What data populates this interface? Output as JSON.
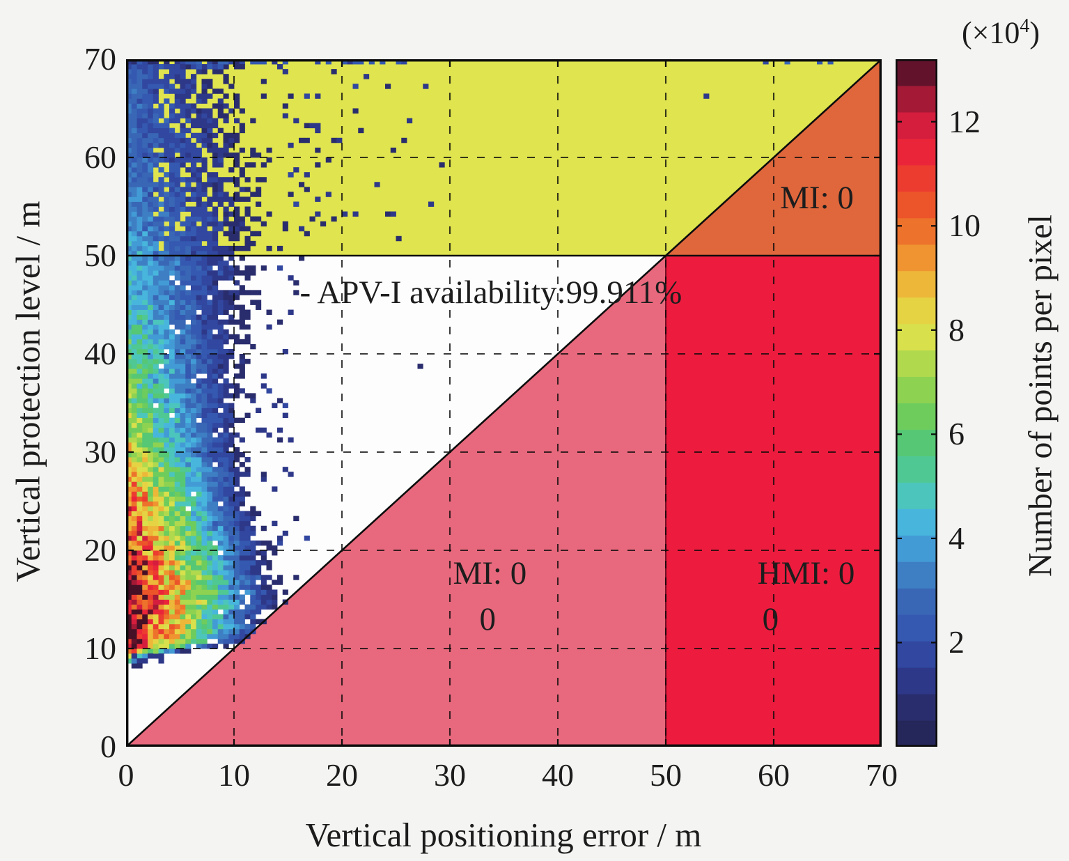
{
  "chart_data": {
    "type": "heatmap",
    "xlabel": "Vertical positioning error / m",
    "ylabel": "Vertical protection level / m",
    "xlim": [
      0,
      70
    ],
    "ylim": [
      0,
      70
    ],
    "xticks": [
      0,
      10,
      20,
      30,
      40,
      50,
      60,
      70
    ],
    "yticks": [
      0,
      10,
      20,
      30,
      40,
      50,
      60,
      70
    ],
    "grid": "dashed",
    "background_plot": "#fdfdfd",
    "colorbar": {
      "label": "Number of points per pixel",
      "scale_prefix": "(×10",
      "scale_exp": "4",
      "scale_suffix": ")",
      "ticks": [
        2,
        4,
        6,
        8,
        10,
        12
      ],
      "vmin": 0,
      "vmax": 13.2,
      "bands": 26,
      "stops": [
        [
          0.0,
          "#23224f"
        ],
        [
          0.06,
          "#2a2d6e"
        ],
        [
          0.12,
          "#30409a"
        ],
        [
          0.17,
          "#3558af"
        ],
        [
          0.22,
          "#3a6ab8"
        ],
        [
          0.26,
          "#3f86c8"
        ],
        [
          0.3,
          "#44a4da"
        ],
        [
          0.335,
          "#49bcdc"
        ],
        [
          0.37,
          "#4cc6b8"
        ],
        [
          0.41,
          "#50c88e"
        ],
        [
          0.455,
          "#58c76a"
        ],
        [
          0.5,
          "#7ecf54"
        ],
        [
          0.55,
          "#a8d84e"
        ],
        [
          0.6,
          "#dce14c"
        ],
        [
          0.645,
          "#e9cf42"
        ],
        [
          0.69,
          "#efa834"
        ],
        [
          0.735,
          "#ee7e2c"
        ],
        [
          0.78,
          "#ec5a28"
        ],
        [
          0.83,
          "#ec3a30"
        ],
        [
          0.875,
          "#ea1f3c"
        ],
        [
          0.91,
          "#d01d3e"
        ],
        [
          0.945,
          "#a01934"
        ],
        [
          0.975,
          "#6b142c"
        ],
        [
          1.0,
          "#461026"
        ]
      ]
    },
    "regions": [
      {
        "name": "system-unavailable",
        "color": "#dfe44f",
        "polygon": [
          [
            0,
            50
          ],
          [
            50,
            50
          ],
          [
            70,
            70
          ],
          [
            0,
            70
          ]
        ]
      },
      {
        "name": "mi-upper",
        "color": "#e0673c",
        "polygon": [
          [
            50,
            50
          ],
          [
            70,
            70
          ],
          [
            70,
            50
          ]
        ]
      },
      {
        "name": "mi-lower",
        "color": "#e8697d",
        "polygon": [
          [
            0,
            0
          ],
          [
            50,
            50
          ],
          [
            50,
            0
          ]
        ]
      },
      {
        "name": "hmi",
        "color": "#ed1c3e",
        "polygon": [
          [
            50,
            0
          ],
          [
            50,
            50
          ],
          [
            70,
            50
          ],
          [
            70,
            0
          ]
        ]
      }
    ],
    "diagonal": {
      "from": [
        0,
        0
      ],
      "to": [
        70,
        70
      ]
    },
    "hline_y": 50,
    "vline_x": 50,
    "annotations": [
      {
        "text": "- APV-I availability:99.911%",
        "x": 16.1,
        "y": 46.2,
        "anchor": "left"
      },
      {
        "text": "MI: 0",
        "x": 64.0,
        "y": 55.8,
        "anchor": "center"
      },
      {
        "text": "MI: 0",
        "x": 33.7,
        "y": 17.6,
        "anchor": "center"
      },
      {
        "text": "0",
        "x": 33.5,
        "y": 12.9,
        "anchor": "center"
      },
      {
        "text": "HMI: 0",
        "x": 63.0,
        "y": 17.6,
        "anchor": "center"
      },
      {
        "text": "0",
        "x": 59.7,
        "y": 12.9,
        "anchor": "center"
      }
    ],
    "density_model": {
      "note": "2-D histogram of VPL vs VPE, bin 0.5 m, values are counts x10^4",
      "seed": 1234,
      "bin": 0.5,
      "y_knots": [
        8.4,
        9.0,
        9.6,
        10.1,
        11,
        13,
        15,
        17,
        20,
        23,
        26,
        29,
        32,
        36,
        40,
        44,
        48,
        52,
        56,
        60,
        65,
        70
      ],
      "peak": [
        1.2,
        8.0,
        11.0,
        12.5,
        12.8,
        13.2,
        13.2,
        12.8,
        11.8,
        11.0,
        10.2,
        8.6,
        7.6,
        6.6,
        6.0,
        5.2,
        4.5,
        4.0,
        3.2,
        2.9,
        2.8,
        2.6
      ],
      "width": [
        1.2,
        2.5,
        5.0,
        9.0,
        13.0,
        14.8,
        15.5,
        15.0,
        14.0,
        13.4,
        13.0,
        12.6,
        12.3,
        12.3,
        12.6,
        13.0,
        13.6,
        14.5,
        15.5,
        15.5,
        14.0,
        12.0
      ],
      "falloff_exp": 1.15,
      "outliers": [
        [
          27.2,
          38.9
        ],
        [
          53.7,
          66.0
        ],
        [
          26.3,
          63.6
        ],
        [
          23.2,
          57.2
        ],
        [
          28.4,
          55.3
        ],
        [
          24.6,
          60.6
        ],
        [
          21.3,
          64.9
        ],
        [
          27.9,
          67.3
        ],
        [
          22.1,
          68.2
        ],
        [
          25.2,
          51.9
        ],
        [
          29.3,
          59.4
        ],
        [
          20.4,
          54.2
        ],
        [
          19.8,
          61.8
        ],
        [
          0.9,
          9.3
        ],
        [
          1.4,
          8.8
        ],
        [
          2.3,
          9.0
        ],
        [
          3.1,
          8.7
        ],
        [
          3.3,
          9.4
        ],
        [
          5.0,
          9.6
        ],
        [
          1.0,
          8.4
        ],
        [
          1.6,
          8.6
        ]
      ]
    }
  }
}
